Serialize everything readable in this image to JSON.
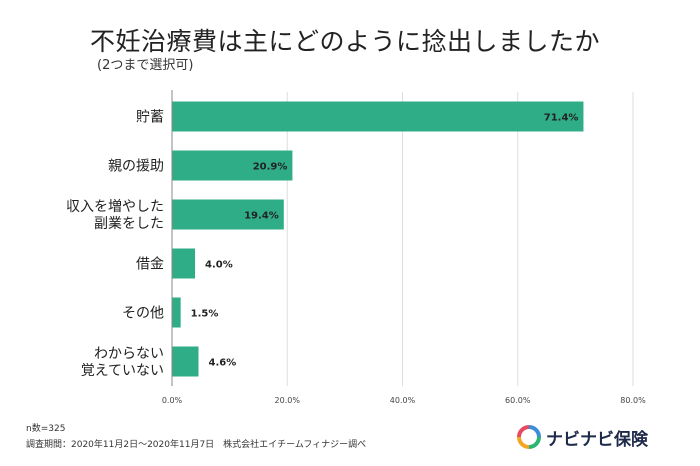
{
  "header": {
    "title": "不妊治療費は主にどのように捻出しましたか",
    "subtitle": "(2つまで選択可)"
  },
  "footer": {
    "n_label": "n数=325",
    "survey_note": "調査期間：2020年11月2日〜2020年11月7日　株式会社エイチームフィナジー調べ"
  },
  "brand": {
    "name": "ナビナビ保険",
    "icon": "navinavi-logo-icon",
    "icon_colors": [
      "#e84a5f",
      "#f5a623",
      "#2bb673",
      "#3b8fd9"
    ]
  },
  "colors": {
    "bar": "#2ead86",
    "grid": "#dddddd",
    "axis": "#888888"
  },
  "chart_data": {
    "type": "bar",
    "orientation": "horizontal",
    "categories": [
      [
        "貯蓄"
      ],
      [
        "親の援助"
      ],
      [
        "収入を増やした",
        "副業をした"
      ],
      [
        "借金"
      ],
      [
        "その他"
      ],
      [
        "わからない",
        "覚えていない"
      ]
    ],
    "values": [
      71.4,
      20.9,
      19.4,
      4.0,
      1.5,
      4.6
    ],
    "value_labels": [
      "71.4%",
      "20.9%",
      "19.4%",
      "4.0%",
      "1.5%",
      "4.6%"
    ],
    "xticks": [
      "0.0%",
      "20.0%",
      "40.0%",
      "60.0%",
      "80.0%"
    ],
    "xlim": [
      0,
      80
    ],
    "grid": true
  }
}
